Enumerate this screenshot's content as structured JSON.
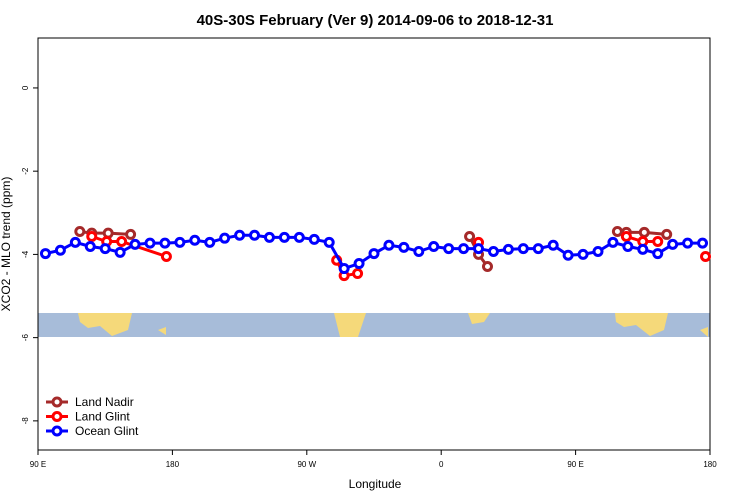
{
  "chart_data": {
    "type": "line",
    "title": "40S-30S February (Ver 9)   2014-09-06 to 2018-12-31",
    "x_label": "Longitude",
    "y_label": "XCO2 - MLO trend (ppm)",
    "xlim": [
      90,
      540
    ],
    "xticks": [
      {
        "value": 90,
        "label": "90 E"
      },
      180,
      {
        "value": 270,
        "label": "90 W"
      },
      {
        "value": 360,
        "label": "0"
      },
      {
        "value": 450,
        "label": "90 E"
      },
      {
        "value": 540,
        "label": "180"
      }
    ],
    "ylim": [
      -8.7,
      1.2
    ],
    "yticks": [
      0,
      -2,
      -4,
      -6,
      -8
    ],
    "legend": "bottom-left",
    "series": [
      {
        "name": "Land Nadir",
        "color": "#a52a2a",
        "x": [
          118,
          126,
          137,
          152,
          null,
          379,
          385,
          391,
          null,
          478,
          484,
          496,
          511
        ],
        "values": [
          -3.45,
          -3.49,
          -3.49,
          -3.52,
          null,
          -3.57,
          -4.0,
          -4.29,
          null,
          -3.45,
          -3.47,
          -3.47,
          -3.52
        ]
      },
      {
        "name": "Land Glint",
        "color": "#ff0000",
        "x": [
          126,
          136,
          146,
          176,
          null,
          290,
          295,
          304,
          null,
          385,
          null,
          484,
          495,
          505,
          null,
          537
        ],
        "values": [
          -3.57,
          -3.69,
          -3.69,
          -4.05,
          null,
          -4.14,
          -4.51,
          -4.46,
          null,
          -3.71,
          null,
          -3.57,
          -3.69,
          -3.69,
          null,
          -4.05
        ]
      },
      {
        "name": "Ocean Glint",
        "color": "#0000ff",
        "x": [
          95,
          105,
          115,
          125,
          135,
          145,
          155,
          165,
          175,
          185,
          195,
          205,
          215,
          225,
          235,
          245,
          255,
          265,
          275,
          285,
          295,
          305,
          315,
          325,
          335,
          345,
          355,
          365,
          375,
          385,
          395,
          405,
          415,
          425,
          435,
          445,
          455,
          465,
          475,
          485,
          495,
          505,
          515,
          525,
          535
        ],
        "values": [
          -3.98,
          -3.9,
          -3.71,
          -3.81,
          -3.86,
          -3.95,
          -3.76,
          -3.73,
          -3.73,
          -3.71,
          -3.66,
          -3.71,
          -3.61,
          -3.54,
          -3.54,
          -3.59,
          -3.59,
          -3.59,
          -3.64,
          -3.71,
          -4.34,
          -4.22,
          -3.98,
          -3.78,
          -3.83,
          -3.93,
          -3.81,
          -3.86,
          -3.86,
          -3.86,
          -3.93,
          -3.88,
          -3.86,
          -3.86,
          -3.78,
          -4.02,
          -4.0,
          -3.93,
          -3.71,
          -3.81,
          -3.88,
          -3.98,
          -3.76,
          -3.73,
          -3.73
        ]
      }
    ]
  }
}
